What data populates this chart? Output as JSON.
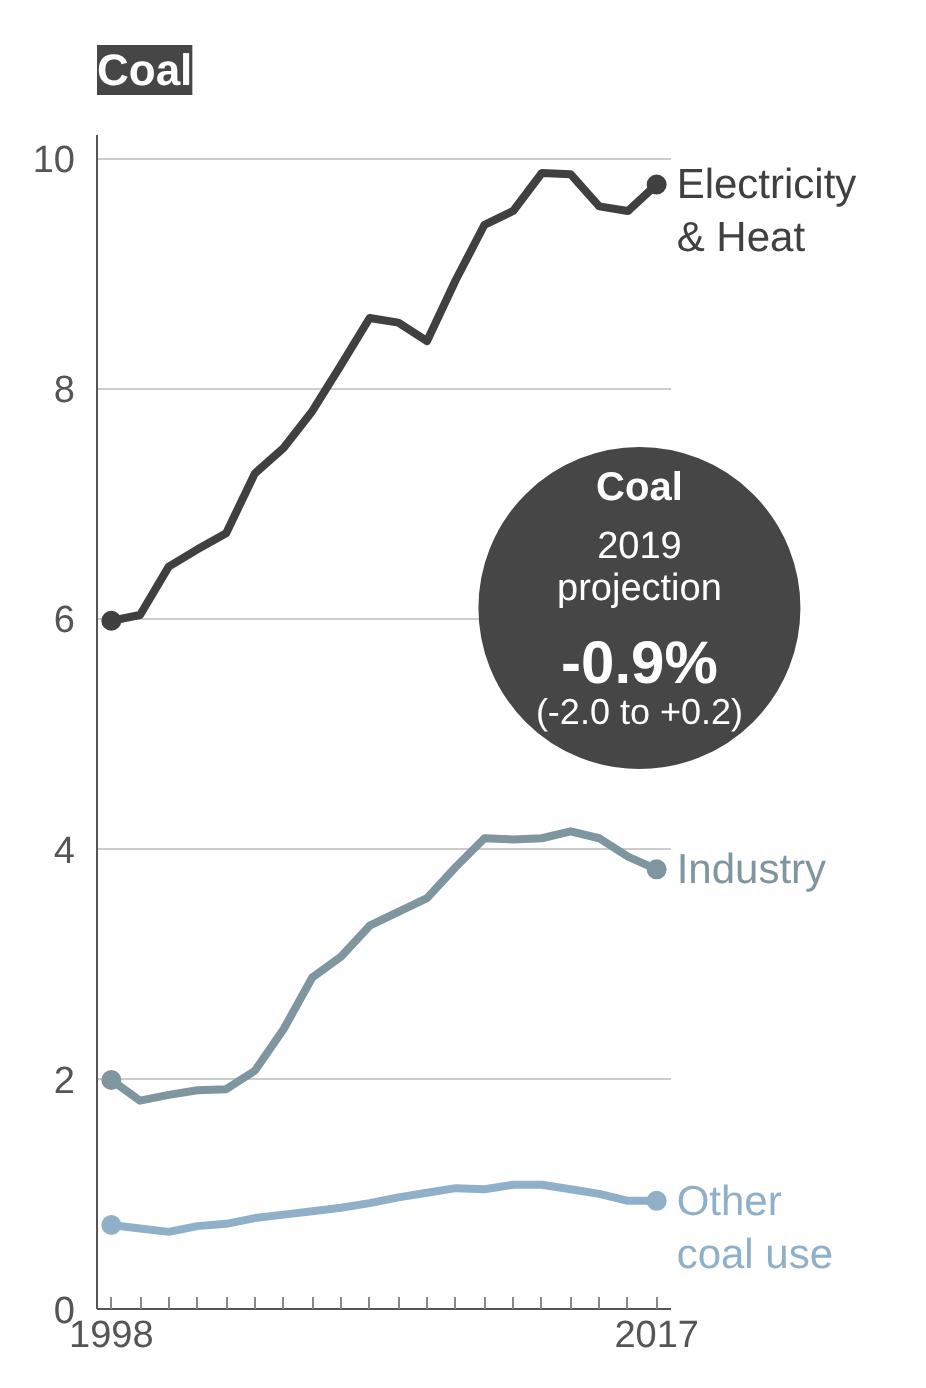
{
  "chart_data": {
    "type": "line",
    "title": "Coal",
    "x": [
      1998,
      1999,
      2000,
      2001,
      2002,
      2003,
      2004,
      2005,
      2006,
      2007,
      2008,
      2009,
      2010,
      2011,
      2012,
      2013,
      2014,
      2015,
      2016,
      2017
    ],
    "series": [
      {
        "name": "Electricity\n& Heat",
        "color": "#404040",
        "values": [
          5.98,
          6.03,
          6.45,
          6.6,
          6.74,
          7.26,
          7.48,
          7.8,
          8.2,
          8.61,
          8.57,
          8.41,
          8.94,
          9.42,
          9.54,
          9.87,
          9.86,
          9.58,
          9.54,
          9.77
        ]
      },
      {
        "name": "Industry",
        "color": "#7f959f",
        "values": [
          1.99,
          1.81,
          1.86,
          1.9,
          1.91,
          2.07,
          2.43,
          2.88,
          3.06,
          3.33,
          3.45,
          3.57,
          3.84,
          4.09,
          4.08,
          4.09,
          4.15,
          4.09,
          3.93,
          3.82
        ]
      },
      {
        "name": "Other\ncoal use",
        "color": "#8fb0c8",
        "values": [
          0.73,
          0.7,
          0.67,
          0.72,
          0.74,
          0.79,
          0.82,
          0.85,
          0.88,
          0.92,
          0.97,
          1.01,
          1.05,
          1.04,
          1.08,
          1.08,
          1.04,
          1.0,
          0.94,
          0.94
        ]
      }
    ],
    "xlim": [
      1997.5,
      2017.5
    ],
    "xticks": [
      1998,
      {
        "value": 1999,
        "label": null
      },
      {
        "value": 2000,
        "label": null
      },
      {
        "value": 2001,
        "label": null
      },
      {
        "value": 2002,
        "label": null
      },
      {
        "value": 2003,
        "label": null
      },
      {
        "value": 2004,
        "label": null
      },
      {
        "value": 2005,
        "label": null
      },
      {
        "value": 2006,
        "label": null
      },
      {
        "value": 2007,
        "label": null
      },
      {
        "value": 2008,
        "label": null
      },
      {
        "value": 2009,
        "label": null
      },
      {
        "value": 2010,
        "label": null
      },
      {
        "value": 2011,
        "label": null
      },
      {
        "value": 2012,
        "label": null
      },
      {
        "value": 2013,
        "label": null
      },
      {
        "value": 2014,
        "label": null
      },
      {
        "value": 2015,
        "label": null
      },
      {
        "value": 2016,
        "label": null
      },
      2017
    ],
    "ylim": [
      0,
      10.2
    ],
    "yticks": [
      0,
      2,
      4,
      6,
      8,
      10
    ],
    "grid": "y",
    "annotations": [
      "Coal",
      "2019\nprojection",
      "-0.9%",
      "(-2.0 to +0.2)"
    ]
  }
}
